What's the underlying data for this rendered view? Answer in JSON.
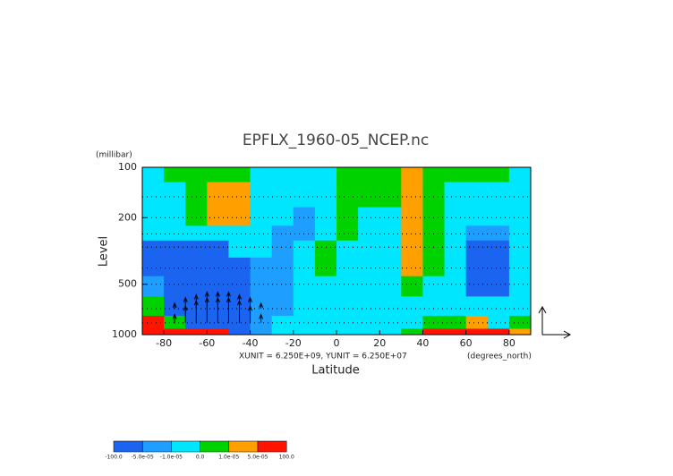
{
  "chart_data": {
    "type": "contour",
    "title": "EPFLX_1960-05_NCEP.nc",
    "y_unit_label": "(millibar)",
    "ylabel": "Level",
    "xlabel": "Latitude",
    "x_unit_label": "(degrees_north)",
    "annotation": "XUNIT = 6.250E+09, YUNIT = 6.250E+07",
    "xlim": [
      -90,
      90
    ],
    "ylim": [
      1000,
      100
    ],
    "ylog": true,
    "xticks": [
      -80,
      -60,
      -40,
      -20,
      0,
      20,
      40,
      60,
      80
    ],
    "yticks": [
      100,
      200,
      500,
      1000
    ],
    "x": [
      -85,
      -75,
      -65,
      -55,
      -45,
      -35,
      -25,
      -15,
      -5,
      5,
      15,
      25,
      35,
      45,
      55,
      65,
      75,
      85
    ],
    "y": [
      100,
      150,
      200,
      250,
      300,
      400,
      500,
      700,
      850,
      1000
    ],
    "z": [
      [
        -5e-06,
        5e-06,
        5e-06,
        5e-06,
        5e-06,
        -5e-06,
        -5e-06,
        -5e-06,
        -5e-06,
        5e-06,
        5e-06,
        5e-06,
        3e-05,
        5e-06,
        5e-06,
        5e-06,
        5e-06,
        -5e-06
      ],
      [
        -5e-06,
        -5e-06,
        5e-06,
        3e-05,
        3e-05,
        -5e-06,
        -5e-06,
        -5e-06,
        -5e-06,
        5e-06,
        5e-06,
        5e-06,
        3e-05,
        5e-06,
        -5e-06,
        -5e-06,
        -5e-06,
        -5e-06
      ],
      [
        -5e-06,
        -5e-06,
        5e-06,
        3e-05,
        3e-05,
        -5e-06,
        -5e-06,
        -3e-05,
        -5e-06,
        5e-06,
        -5e-06,
        -5e-06,
        3e-05,
        5e-06,
        -5e-06,
        -5e-06,
        -5e-06,
        -5e-06
      ],
      [
        -5e-06,
        -5e-06,
        -5e-06,
        -5e-06,
        -5e-06,
        -5e-06,
        -3e-05,
        -3e-05,
        -5e-06,
        5e-06,
        -5e-06,
        -5e-06,
        3e-05,
        5e-06,
        -5e-06,
        -3e-05,
        -3e-05,
        -5e-06
      ],
      [
        -7e-05,
        -7e-05,
        -7e-05,
        -7e-05,
        -5e-06,
        -5e-06,
        -3e-05,
        -5e-06,
        5e-06,
        -5e-06,
        -5e-06,
        -5e-06,
        3e-05,
        5e-06,
        -5e-06,
        -7e-05,
        -7e-05,
        -5e-06
      ],
      [
        -7e-05,
        -7e-05,
        -7e-05,
        -7e-05,
        -7e-05,
        -3e-05,
        -3e-05,
        -5e-06,
        5e-06,
        -5e-06,
        -5e-06,
        -5e-06,
        3e-05,
        5e-06,
        -5e-06,
        -7e-05,
        -7e-05,
        -5e-06
      ],
      [
        -3e-05,
        -7e-05,
        -7e-05,
        -7e-05,
        -7e-05,
        -3e-05,
        -3e-05,
        -5e-06,
        -5e-06,
        -5e-06,
        -5e-06,
        -5e-06,
        5e-06,
        -5e-06,
        -5e-06,
        -7e-05,
        -7e-05,
        -5e-06
      ],
      [
        5e-06,
        -7e-05,
        -7e-05,
        -7e-05,
        -7e-05,
        -3e-05,
        -3e-05,
        -5e-06,
        -5e-06,
        -5e-06,
        -5e-06,
        -5e-06,
        -5e-06,
        -5e-06,
        -5e-06,
        -5e-06,
        -5e-06,
        -5e-06
      ],
      [
        7e-05,
        5e-06,
        -7e-05,
        -7e-05,
        -7e-05,
        -3e-05,
        -5e-06,
        -5e-06,
        -5e-06,
        -5e-06,
        -5e-06,
        -5e-06,
        -5e-06,
        5e-06,
        5e-06,
        3e-05,
        -5e-06,
        5e-06
      ],
      [
        7e-05,
        7e-05,
        7e-05,
        7e-05,
        -7e-05,
        -3e-05,
        -5e-06,
        -5e-06,
        -5e-06,
        -5e-06,
        -5e-06,
        -5e-06,
        5e-06,
        7e-05,
        7e-05,
        7e-05,
        7e-05,
        3e-05
      ]
    ],
    "vectors": {
      "lat": [
        -75,
        -70,
        -65,
        -60,
        -55,
        -50,
        -45,
        -40,
        -35,
        -75,
        -70,
        -65,
        -60,
        -55,
        -50,
        -45,
        -40,
        -35
      ],
      "level": [
        700,
        700,
        700,
        700,
        700,
        700,
        700,
        700,
        700,
        850,
        850,
        850,
        850,
        850,
        850,
        850,
        850,
        850
      ],
      "v": [
        0.2,
        0.4,
        0.5,
        0.6,
        0.6,
        0.6,
        0.5,
        0.4,
        0.2,
        0.3,
        0.6,
        0.8,
        0.9,
        0.9,
        0.9,
        0.8,
        0.6,
        0.3
      ]
    },
    "colorbar": {
      "levels": [
        {
          "value": -100,
          "label": "-100.0"
        },
        {
          "value": -5e-05,
          "label": "-5.0e-05"
        },
        {
          "value": -1e-05,
          "label": "-1.0e-05"
        },
        {
          "value": 0,
          "label": "0.0"
        },
        {
          "value": 1e-05,
          "label": "1.0e-05"
        },
        {
          "value": 5e-05,
          "label": "5.0e-05"
        },
        {
          "value": 100,
          "label": "100.0"
        }
      ],
      "colors": [
        "#1a64f0",
        "#1e9eff",
        "#00e6ff",
        "#00d200",
        "#ff9f00",
        "#ff1400"
      ]
    }
  }
}
